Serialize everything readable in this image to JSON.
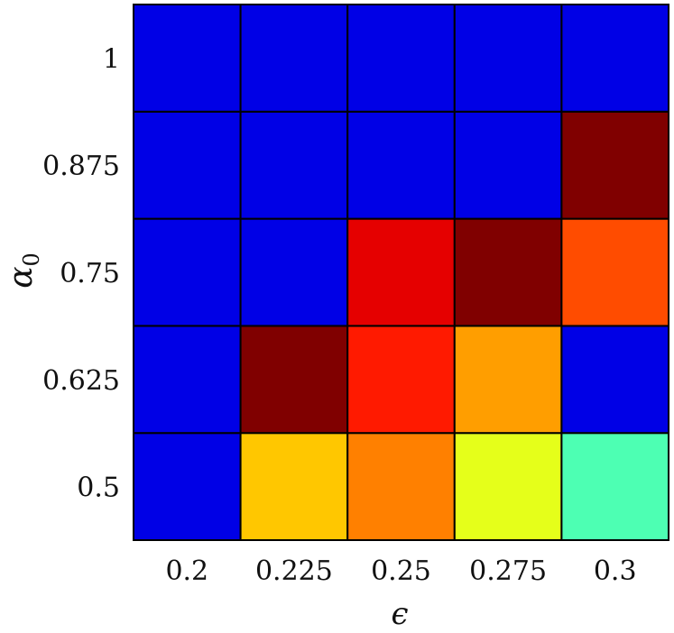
{
  "chart_data": {
    "type": "heatmap",
    "title": "",
    "xlabel": "ϵ",
    "ylabel": "α",
    "ylabel_subscript": "0",
    "x_categories": [
      "0.2",
      "0.225",
      "0.25",
      "0.275",
      "0.3"
    ],
    "y_categories": [
      "0.5",
      "0.625",
      "0.75",
      "0.875",
      "1"
    ],
    "colormap": "jet",
    "color_range": [
      0,
      1
    ],
    "grid": true,
    "legend": "none",
    "values": [
      [
        0.1,
        0.68,
        0.75,
        0.6,
        0.45
      ],
      [
        0.1,
        1.0,
        0.85,
        0.72,
        0.1
      ],
      [
        0.1,
        0.1,
        0.9,
        1.0,
        0.8
      ],
      [
        0.1,
        0.1,
        0.1,
        0.1,
        1.0
      ],
      [
        0.1,
        0.1,
        0.1,
        0.1,
        0.1
      ]
    ]
  }
}
